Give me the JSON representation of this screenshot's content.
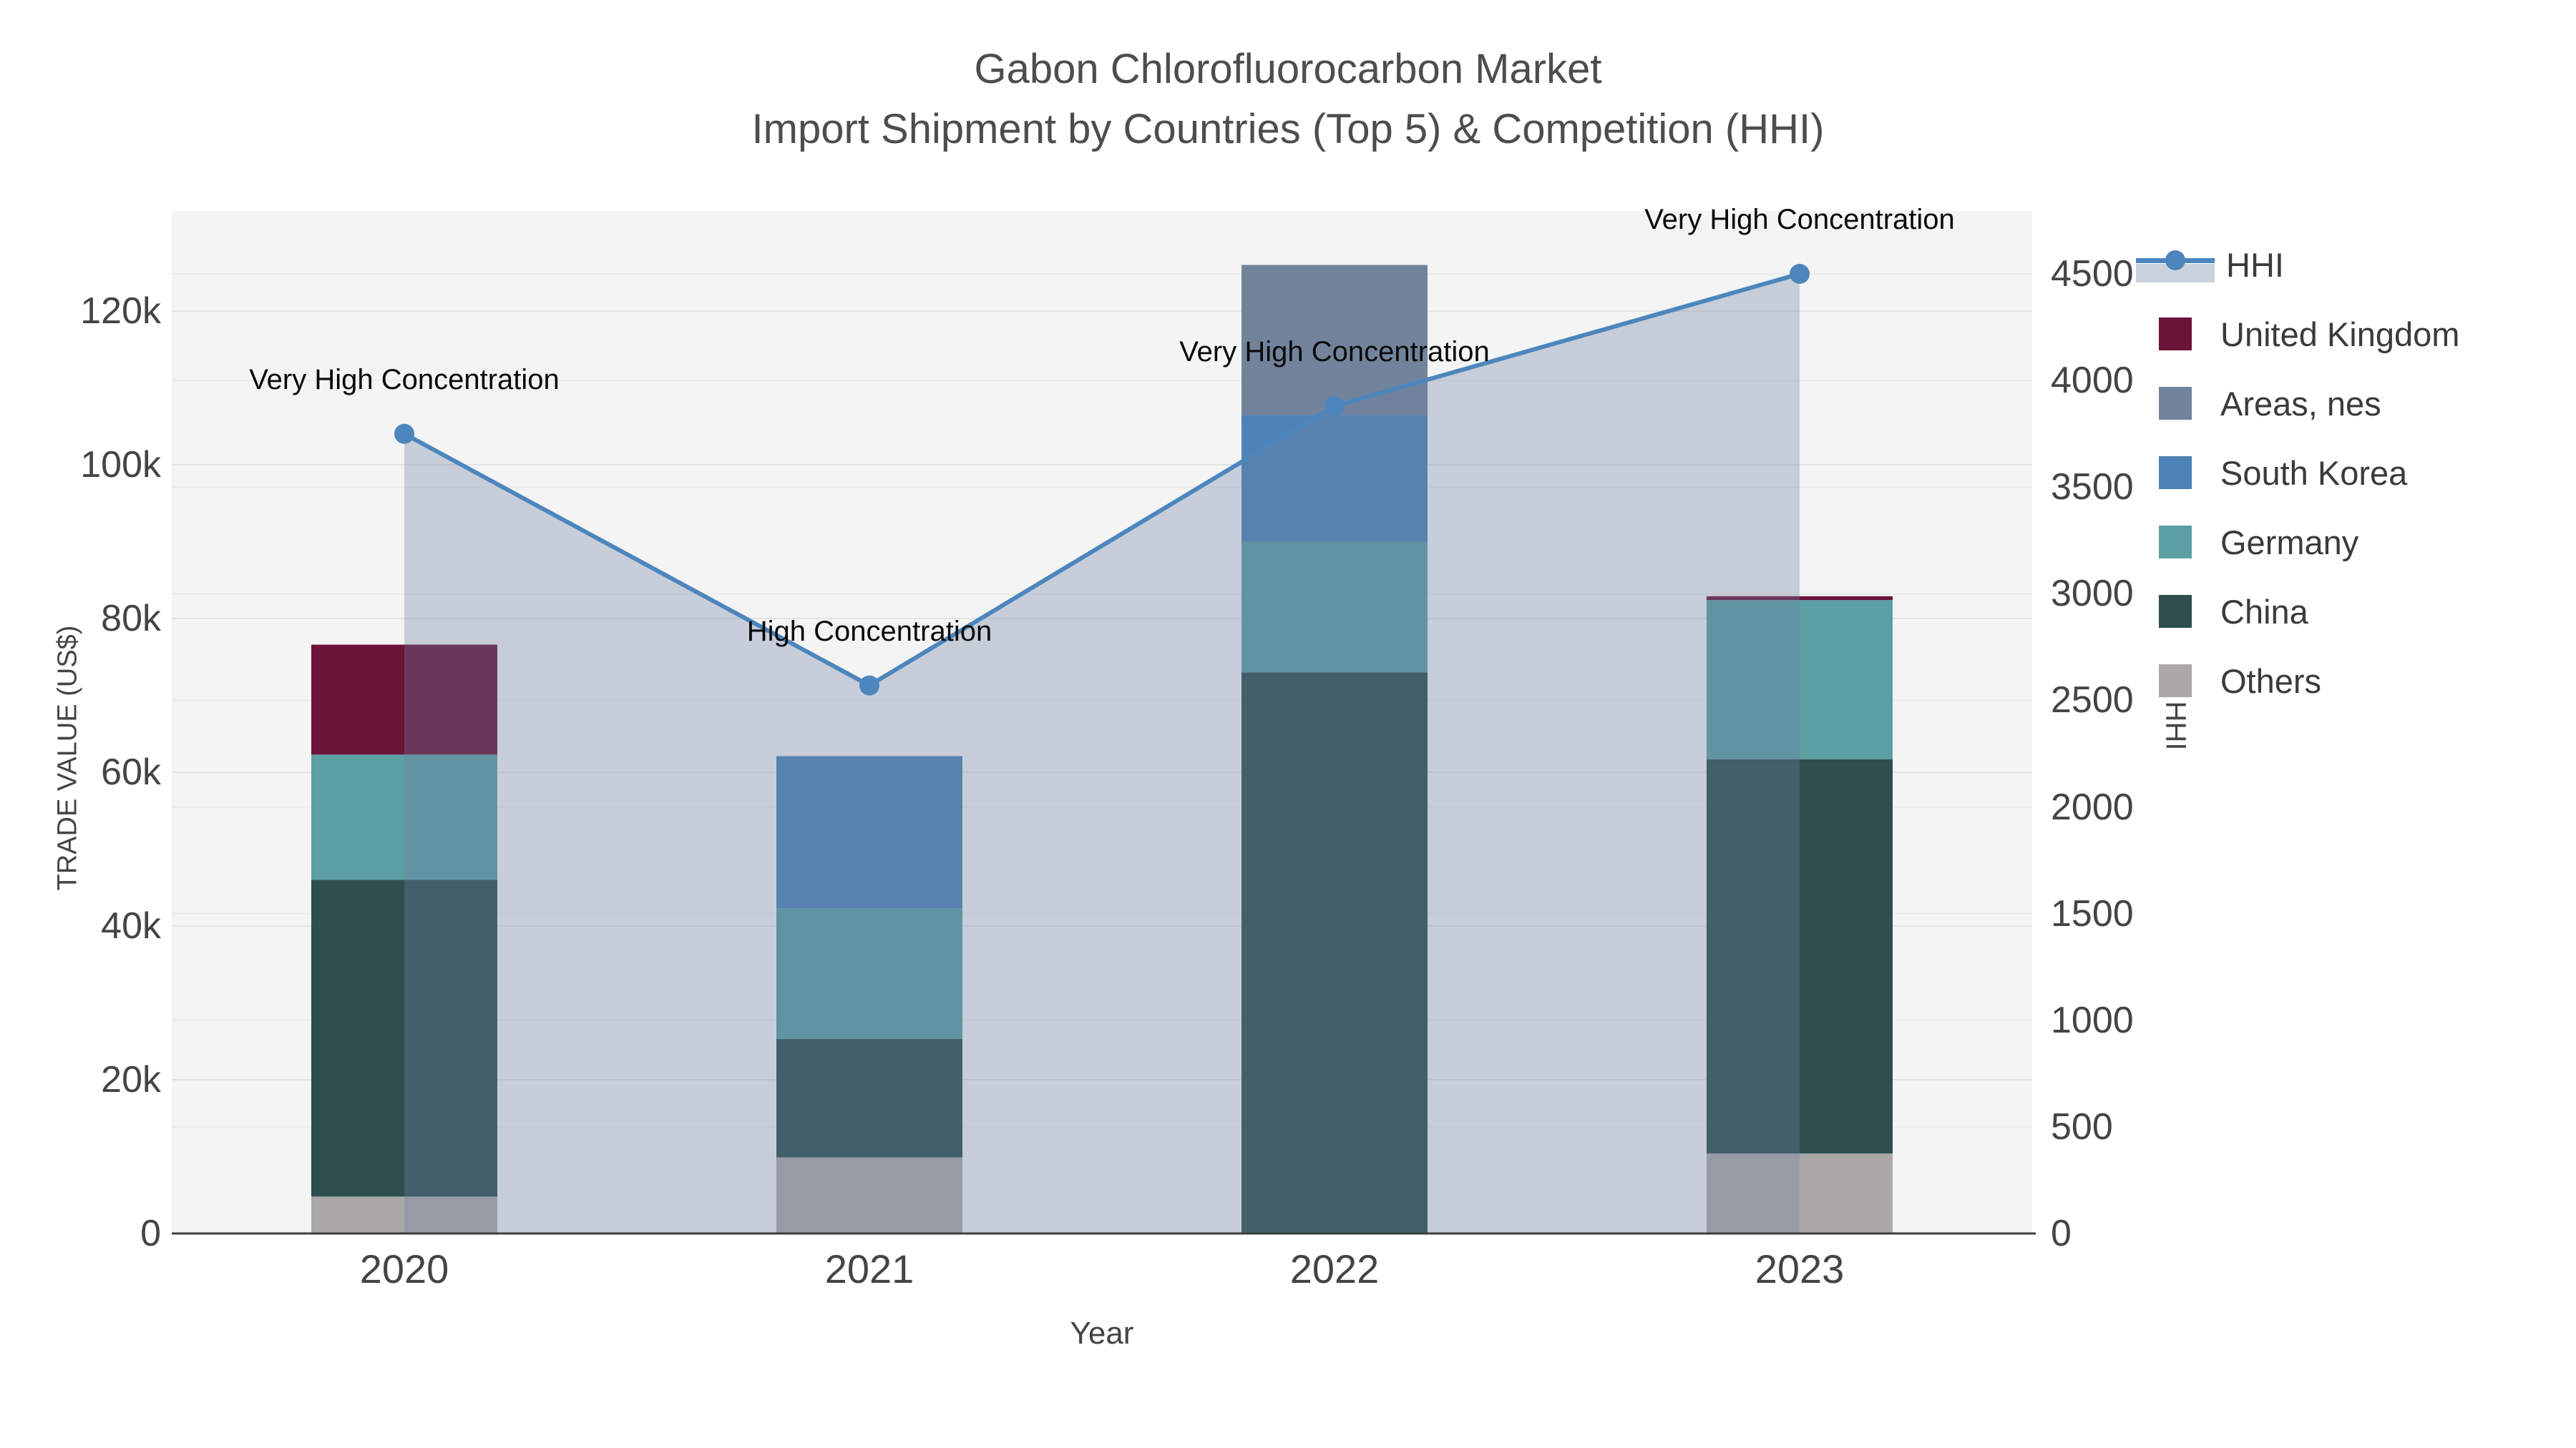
{
  "title": {
    "line1": "Gabon Chlorofluorocarbon Market",
    "line2": "Import Shipment by Countries (Top 5) & Competition (HHI)"
  },
  "axes": {
    "x": {
      "title": "Year"
    },
    "y_left": {
      "title": "TRADE VALUE (US$)",
      "tick_labels": [
        "0",
        "20k",
        "40k",
        "60k",
        "80k",
        "100k",
        "120k"
      ],
      "tick_values": [
        0,
        20000,
        40000,
        60000,
        80000,
        100000,
        120000
      ]
    },
    "y_right": {
      "title": "HHI",
      "tick_labels": [
        "0",
        "500",
        "1000",
        "1500",
        "2000",
        "2500",
        "3000",
        "3500",
        "4000",
        "4500"
      ],
      "tick_values": [
        0,
        500,
        1000,
        1500,
        2000,
        2500,
        3000,
        3500,
        4000,
        4500
      ]
    }
  },
  "legend": {
    "items": [
      {
        "label": "HHI",
        "type": "line",
        "color": "#4c86bc",
        "band": "#cbd2de"
      },
      {
        "label": "United Kingdom",
        "type": "swatch",
        "color": "#6a1538"
      },
      {
        "label": "Areas, nes",
        "type": "swatch",
        "color": "#72849b"
      },
      {
        "label": "South Korea",
        "type": "swatch",
        "color": "#4d83b6"
      },
      {
        "label": "Germany",
        "type": "swatch",
        "color": "#5c9fa3"
      },
      {
        "label": "China",
        "type": "swatch",
        "color": "#2d4f4e"
      },
      {
        "label": "Others",
        "type": "swatch",
        "color": "#aaa9a7"
      }
    ]
  },
  "chart_data": {
    "type": "bar",
    "subtype": "stacked-bars-with-line",
    "categories": [
      "2020",
      "2021",
      "2022",
      "2023"
    ],
    "bar_series": [
      {
        "name": "Others",
        "color": "#aaa9a7",
        "values": [
          4800,
          9900,
          0,
          10400
        ]
      },
      {
        "name": "China",
        "color": "#2d4f4e",
        "values": [
          41200,
          15400,
          73000,
          51300
        ]
      },
      {
        "name": "Germany",
        "color": "#5c9fa3",
        "values": [
          16300,
          17000,
          17000,
          20700
        ]
      },
      {
        "name": "South Korea",
        "color": "#4d83b6",
        "values": [
          0,
          19800,
          16500,
          0
        ]
      },
      {
        "name": "Areas, nes",
        "color": "#72849b",
        "values": [
          0,
          0,
          19500,
          0
        ]
      },
      {
        "name": "United Kingdom",
        "color": "#6a1538",
        "values": [
          14300,
          0,
          0,
          500
        ]
      }
    ],
    "line_series": {
      "name": "HHI",
      "axis": "right",
      "color": "#4c86bc",
      "area_fill": "rgba(108,128,163,0.33)",
      "values": [
        3750,
        2570,
        3880,
        4500
      ]
    },
    "annotations": [
      {
        "category": "2020",
        "text": "Very High Concentration"
      },
      {
        "category": "2021",
        "text": "High Concentration"
      },
      {
        "category": "2022",
        "text": "Very High Concentration"
      },
      {
        "category": "2023",
        "text": "Very High Concentration"
      }
    ],
    "xlabel": "Year",
    "ylabel_left": "TRADE VALUE (US$)",
    "ylabel_right": "HHI",
    "y_left_range": [
      0,
      133000
    ],
    "y_right_range": [
      0,
      4793
    ],
    "plot_background": "#f4f4f4",
    "grid_color_left": "#e3e3e3",
    "grid_color_right": "#ebebeb",
    "baseline_color": "#3f3f3f",
    "legend_position": "right"
  }
}
